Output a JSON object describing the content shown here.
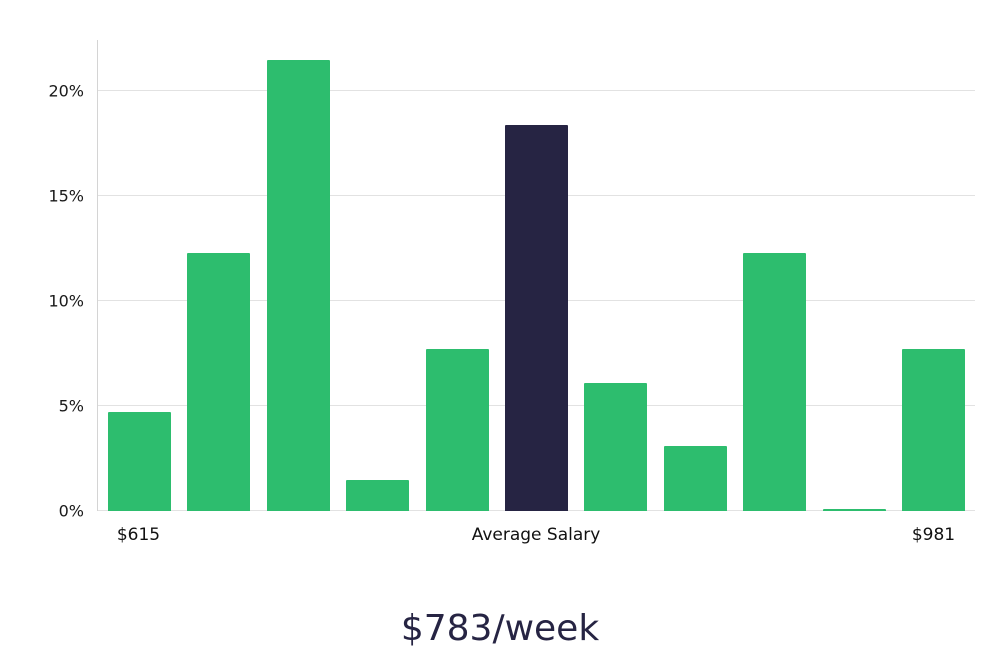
{
  "chart_data": {
    "type": "bar",
    "title": "$783/week",
    "values": [
      4.7,
      12.3,
      21.5,
      1.5,
      7.7,
      18.4,
      6.1,
      3.1,
      12.3,
      0.1,
      7.7
    ],
    "highlight_index": 5,
    "bar_color": "#2dbd6e",
    "highlight_color": "#262443",
    "yticks": [
      {
        "value": 0,
        "label": "0%"
      },
      {
        "value": 5,
        "label": "5%"
      },
      {
        "value": 10,
        "label": "10%"
      },
      {
        "value": 15,
        "label": "15%"
      },
      {
        "value": 20,
        "label": "20%"
      }
    ],
    "ylim": [
      0,
      22.43
    ],
    "x_axis_labels": [
      {
        "index": 0,
        "label": "$615"
      },
      {
        "index": 5,
        "label": "Average Salary"
      },
      {
        "index": 10,
        "label": "$981"
      }
    ],
    "grid": true,
    "legend": "none",
    "xlabel": "",
    "ylabel": ""
  }
}
